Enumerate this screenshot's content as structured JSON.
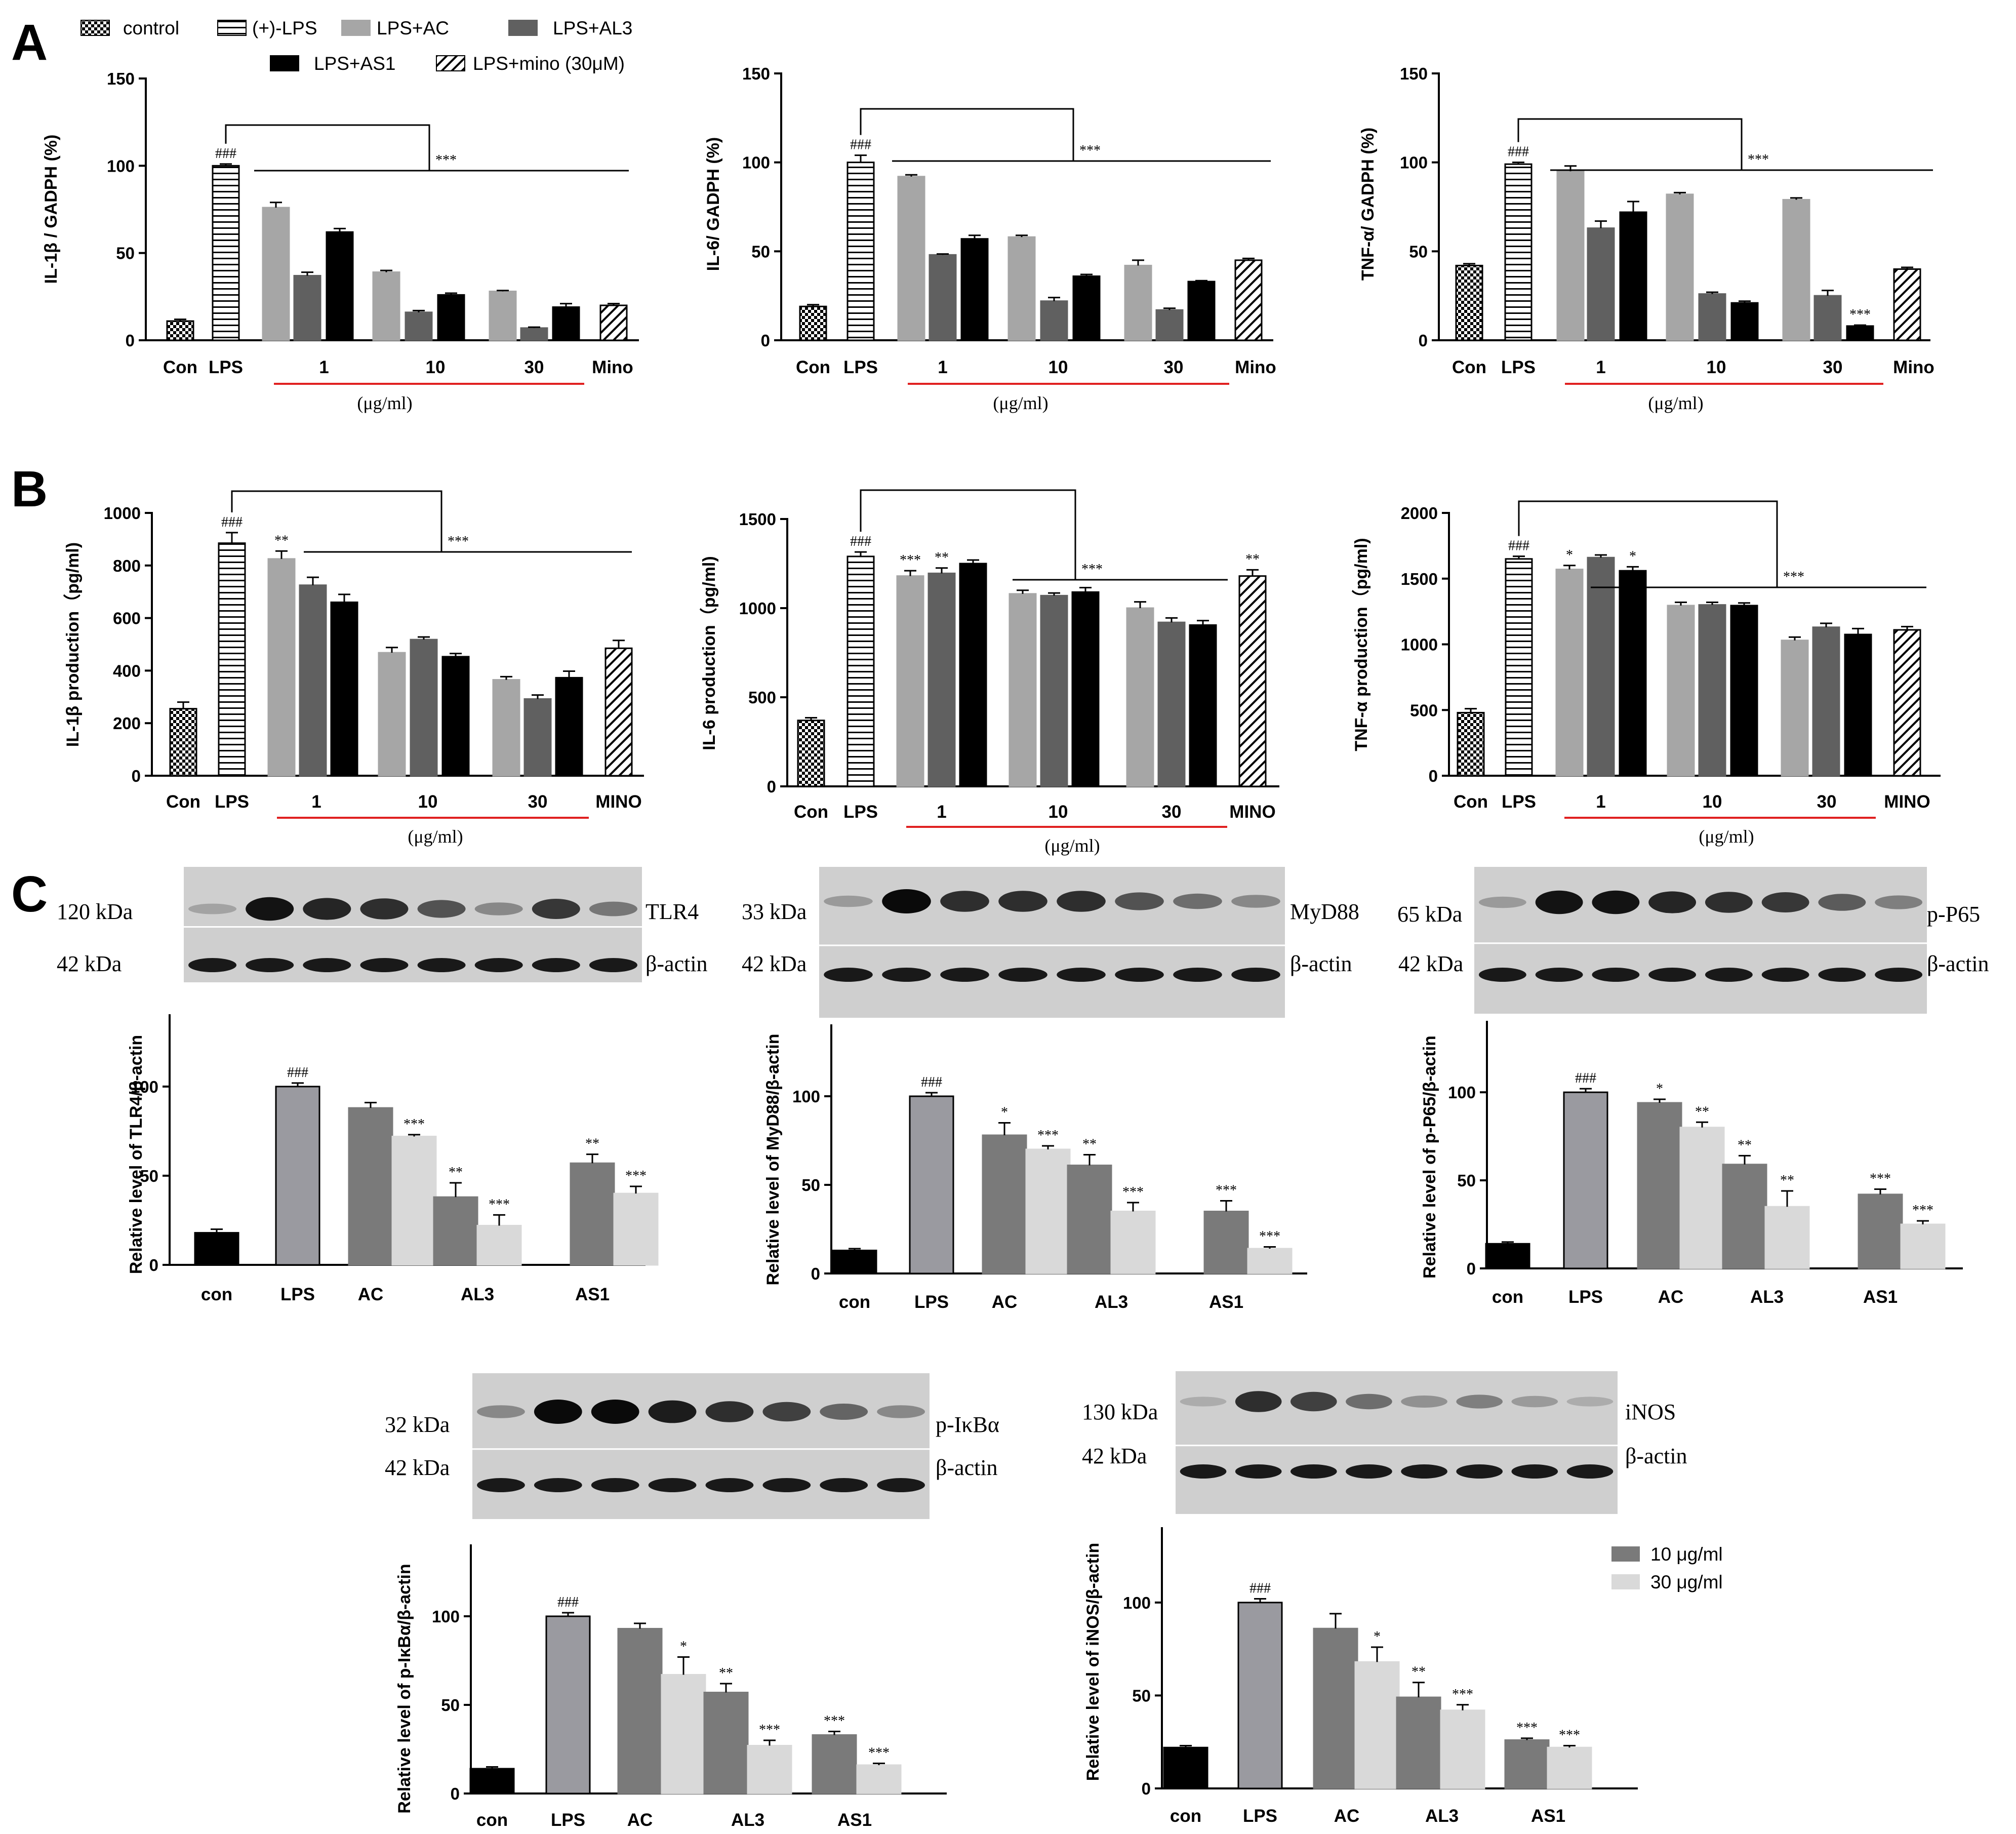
{
  "panels": {
    "a": "A",
    "b": "B",
    "c": "C"
  },
  "legend_a": {
    "items": [
      {
        "label": "control",
        "fill": "check"
      },
      {
        "label": "(+)-LPS",
        "fill": "hstripe"
      },
      {
        "label": "LPS+AC",
        "fill": "#a6a6a6"
      },
      {
        "label": "LPS+AL3",
        "fill": "#606060"
      },
      {
        "label": "LPS+AS1",
        "fill": "#000000"
      },
      {
        "label": "LPS+mino (30μM)",
        "fill": "diag"
      }
    ]
  },
  "legend_c": {
    "items": [
      {
        "label": "10 μg/ml",
        "fill": "#7a7a7a"
      },
      {
        "label": "30 μg/ml",
        "fill": "#d9d9d9"
      }
    ]
  },
  "blots": [
    {
      "kda_top": "120 kDa",
      "protein": "TLR4",
      "kda_bottom": "42 kDa",
      "control": "β-actin",
      "top_intensity": [
        0.15,
        0.95,
        0.85,
        0.8,
        0.6,
        0.3,
        0.75,
        0.4
      ]
    },
    {
      "kda_top": "33 kDa",
      "protein": "MyD88",
      "kda_bottom": "42 kDa",
      "control": "β-actin",
      "top_intensity": [
        0.2,
        1.0,
        0.8,
        0.8,
        0.8,
        0.6,
        0.45,
        0.3
      ]
    },
    {
      "kda_top": "65 kDa",
      "protein": "p-P65",
      "kda_bottom": "42 kDa",
      "control": "β-actin",
      "top_intensity": [
        0.2,
        0.95,
        0.95,
        0.85,
        0.8,
        0.75,
        0.55,
        0.35
      ]
    },
    {
      "kda_top": "32 kDa",
      "protein": "p-IκBα",
      "kda_bottom": "42 kDa",
      "control": "β-actin",
      "top_intensity": [
        0.3,
        1.0,
        1.0,
        0.9,
        0.8,
        0.7,
        0.5,
        0.3
      ]
    },
    {
      "kda_top": "130 kDa",
      "protein": "iNOS",
      "kda_bottom": "42 kDa",
      "control": "β-actin",
      "top_intensity": [
        0.1,
        0.8,
        0.7,
        0.45,
        0.25,
        0.35,
        0.2,
        0.1
      ]
    }
  ],
  "chart_data": [
    {
      "id": "A1",
      "type": "bar",
      "panel": "A",
      "ylabel": "IL-1β / GADPH (%)",
      "ylim": [
        0,
        150
      ],
      "yticks": [
        0,
        50,
        100,
        150
      ],
      "categories": [
        "Con",
        "LPS",
        "1",
        "10",
        "30",
        "Mino"
      ],
      "xunit": "(μg/ml)",
      "bars": [
        {
          "fill": "check",
          "value": 11,
          "err": 1
        },
        {
          "fill": "hstripe",
          "value": 100,
          "err": 1,
          "label": "###"
        },
        {
          "fill": "#a6a6a6",
          "value": 76,
          "err": 3
        },
        {
          "fill": "#606060",
          "value": 37,
          "err": 2
        },
        {
          "fill": "#000000",
          "value": 62,
          "err": 2
        },
        {
          "fill": "#a6a6a6",
          "value": 39,
          "err": 1
        },
        {
          "fill": "#606060",
          "value": 16,
          "err": 1
        },
        {
          "fill": "#000000",
          "value": 26,
          "err": 1
        },
        {
          "fill": "#a6a6a6",
          "value": 28,
          "err": 0.5
        },
        {
          "fill": "#606060",
          "value": 7,
          "err": 0.5
        },
        {
          "fill": "#000000",
          "value": 19,
          "err": 2
        },
        {
          "fill": "diag",
          "value": 20,
          "err": 1
        }
      ],
      "bracket_label": "***"
    },
    {
      "id": "A2",
      "type": "bar",
      "panel": "A",
      "ylabel": "IL-6/ GADPH (%)",
      "ylim": [
        0,
        150
      ],
      "yticks": [
        0,
        50,
        100,
        150
      ],
      "categories": [
        "Con",
        "LPS",
        "1",
        "10",
        "30",
        "Mino"
      ],
      "xunit": "(μg/ml)",
      "bars": [
        {
          "fill": "check",
          "value": 19,
          "err": 1
        },
        {
          "fill": "hstripe",
          "value": 100,
          "err": 4,
          "label": "###"
        },
        {
          "fill": "#a6a6a6",
          "value": 92,
          "err": 1
        },
        {
          "fill": "#606060",
          "value": 48,
          "err": 0.5
        },
        {
          "fill": "#000000",
          "value": 57,
          "err": 2
        },
        {
          "fill": "#a6a6a6",
          "value": 58,
          "err": 1
        },
        {
          "fill": "#606060",
          "value": 22,
          "err": 2
        },
        {
          "fill": "#000000",
          "value": 36,
          "err": 1
        },
        {
          "fill": "#a6a6a6",
          "value": 42,
          "err": 3
        },
        {
          "fill": "#606060",
          "value": 17,
          "err": 1
        },
        {
          "fill": "#000000",
          "value": 33,
          "err": 0.5
        },
        {
          "fill": "diag",
          "value": 45,
          "err": 1
        }
      ],
      "bracket_label": "***"
    },
    {
      "id": "A3",
      "type": "bar",
      "panel": "A",
      "ylabel": "TNF-α/ GADPH (%)",
      "ylim": [
        0,
        150
      ],
      "yticks": [
        0,
        50,
        100,
        150
      ],
      "categories": [
        "Con",
        "LPS",
        "1",
        "10",
        "30",
        "Mino"
      ],
      "xunit": "(μg/ml)",
      "bars": [
        {
          "fill": "check",
          "value": 42,
          "err": 1
        },
        {
          "fill": "hstripe",
          "value": 99,
          "err": 1,
          "label": "###"
        },
        {
          "fill": "#a6a6a6",
          "value": 95,
          "err": 3
        },
        {
          "fill": "#606060",
          "value": 63,
          "err": 4
        },
        {
          "fill": "#000000",
          "value": 72,
          "err": 6
        },
        {
          "fill": "#a6a6a6",
          "value": 82,
          "err": 1
        },
        {
          "fill": "#606060",
          "value": 26,
          "err": 1
        },
        {
          "fill": "#000000",
          "value": 21,
          "err": 1
        },
        {
          "fill": "#a6a6a6",
          "value": 79,
          "err": 1
        },
        {
          "fill": "#606060",
          "value": 25,
          "err": 3
        },
        {
          "fill": "#000000",
          "value": 8,
          "err": 0.5,
          "label": "***"
        },
        {
          "fill": "diag",
          "value": 40,
          "err": 1
        }
      ],
      "bracket_label": "***"
    },
    {
      "id": "B1",
      "type": "bar",
      "panel": "B",
      "ylabel": "IL-1β production（pg/ml)",
      "ylim": [
        0,
        1000
      ],
      "yticks": [
        0,
        200,
        400,
        600,
        800,
        1000
      ],
      "categories": [
        "Con",
        "LPS",
        "1",
        "10",
        "30",
        "MINO"
      ],
      "xunit": "(μg/ml)",
      "bars": [
        {
          "fill": "check",
          "value": 255,
          "err": 25
        },
        {
          "fill": "hstripe",
          "value": 885,
          "err": 40,
          "label": "###"
        },
        {
          "fill": "#a6a6a6",
          "value": 825,
          "err": 30,
          "label": "**"
        },
        {
          "fill": "#606060",
          "value": 725,
          "err": 30
        },
        {
          "fill": "#000000",
          "value": 660,
          "err": 30
        },
        {
          "fill": "#a6a6a6",
          "value": 468,
          "err": 20
        },
        {
          "fill": "#606060",
          "value": 518,
          "err": 10
        },
        {
          "fill": "#000000",
          "value": 453,
          "err": 12
        },
        {
          "fill": "#a6a6a6",
          "value": 365,
          "err": 12
        },
        {
          "fill": "#606060",
          "value": 292,
          "err": 15
        },
        {
          "fill": "#000000",
          "value": 373,
          "err": 25
        },
        {
          "fill": "diag",
          "value": 485,
          "err": 30
        }
      ],
      "bracket_label": "***"
    },
    {
      "id": "B2",
      "type": "bar",
      "panel": "B",
      "ylabel": "IL-6 production（pg/ml)",
      "ylim": [
        0,
        1500
      ],
      "yticks": [
        0,
        500,
        1000,
        1500
      ],
      "categories": [
        "Con",
        "LPS",
        "1",
        "10",
        "30",
        "MINO"
      ],
      "xunit": "(μg/ml)",
      "bars": [
        {
          "fill": "check",
          "value": 370,
          "err": 15
        },
        {
          "fill": "hstripe",
          "value": 1290,
          "err": 25,
          "label": "###"
        },
        {
          "fill": "#a6a6a6",
          "value": 1180,
          "err": 30,
          "label": "***"
        },
        {
          "fill": "#606060",
          "value": 1195,
          "err": 30,
          "label": "**"
        },
        {
          "fill": "#000000",
          "value": 1250,
          "err": 20
        },
        {
          "fill": "#a6a6a6",
          "value": 1080,
          "err": 20
        },
        {
          "fill": "#606060",
          "value": 1070,
          "err": 15
        },
        {
          "fill": "#000000",
          "value": 1090,
          "err": 25
        },
        {
          "fill": "#a6a6a6",
          "value": 1000,
          "err": 35
        },
        {
          "fill": "#606060",
          "value": 920,
          "err": 25
        },
        {
          "fill": "#000000",
          "value": 905,
          "err": 25
        },
        {
          "fill": "diag",
          "value": 1180,
          "err": 35,
          "label": "**"
        }
      ],
      "bracket_label": "***"
    },
    {
      "id": "B3",
      "type": "bar",
      "panel": "B",
      "ylabel": "TNF-α production（pg/ml)",
      "ylim": [
        0,
        2000
      ],
      "yticks": [
        0,
        500,
        1000,
        1500,
        2000
      ],
      "categories": [
        "Con",
        "LPS",
        "1",
        "10",
        "30",
        "MINO"
      ],
      "xunit": "(μg/ml)",
      "bars": [
        {
          "fill": "check",
          "value": 480,
          "err": 30
        },
        {
          "fill": "hstripe",
          "value": 1650,
          "err": 20,
          "label": "###"
        },
        {
          "fill": "#a6a6a6",
          "value": 1570,
          "err": 30,
          "label": "*"
        },
        {
          "fill": "#606060",
          "value": 1660,
          "err": 20
        },
        {
          "fill": "#000000",
          "value": 1560,
          "err": 30,
          "label": "*"
        },
        {
          "fill": "#a6a6a6",
          "value": 1295,
          "err": 25
        },
        {
          "fill": "#606060",
          "value": 1300,
          "err": 20
        },
        {
          "fill": "#000000",
          "value": 1295,
          "err": 20
        },
        {
          "fill": "#a6a6a6",
          "value": 1030,
          "err": 25
        },
        {
          "fill": "#606060",
          "value": 1130,
          "err": 30
        },
        {
          "fill": "#000000",
          "value": 1075,
          "err": 45
        },
        {
          "fill": "diag",
          "value": 1110,
          "err": 25
        }
      ],
      "bracket_label": "***"
    },
    {
      "id": "C1",
      "type": "bar",
      "panel": "C",
      "ylabel": "Relative level of TLR4/β-actin",
      "ylim": [
        0,
        140
      ],
      "yticks": [
        0,
        50,
        100
      ],
      "categories": [
        "con",
        "LPS",
        "AC",
        "AL3",
        "AS1"
      ],
      "bars": [
        {
          "fill": "#000000",
          "value": 18,
          "err": 2
        },
        {
          "fill": "#9a9aa0",
          "value": 100,
          "err": 2,
          "label": "###"
        },
        {
          "fill": "#7a7a7a",
          "value": 88,
          "err": 3
        },
        {
          "fill": "#d9d9d9",
          "value": 72,
          "err": 1,
          "label": "***"
        },
        {
          "fill": "#7a7a7a",
          "value": 38,
          "err": 8,
          "label": "**"
        },
        {
          "fill": "#d9d9d9",
          "value": 22,
          "err": 6,
          "label": "***"
        },
        {
          "fill": "#7a7a7a",
          "value": 57,
          "err": 5,
          "label": "**"
        },
        {
          "fill": "#d9d9d9",
          "value": 40,
          "err": 4,
          "label": "***"
        }
      ]
    },
    {
      "id": "C2",
      "type": "bar",
      "panel": "C",
      "ylabel": "Relative level of MyD88/β-actin",
      "ylim": [
        0,
        140
      ],
      "yticks": [
        0,
        50,
        100
      ],
      "categories": [
        "con",
        "LPS",
        "AC",
        "AL3",
        "AS1"
      ],
      "bars": [
        {
          "fill": "#000000",
          "value": 13,
          "err": 1
        },
        {
          "fill": "#9a9aa0",
          "value": 100,
          "err": 2,
          "label": "###"
        },
        {
          "fill": "#7a7a7a",
          "value": 78,
          "err": 7,
          "label": "*"
        },
        {
          "fill": "#d9d9d9",
          "value": 70,
          "err": 2,
          "label": "***"
        },
        {
          "fill": "#7a7a7a",
          "value": 61,
          "err": 6,
          "label": "**"
        },
        {
          "fill": "#d9d9d9",
          "value": 35,
          "err": 5,
          "label": "***"
        },
        {
          "fill": "#7a7a7a",
          "value": 35,
          "err": 6,
          "label": "***"
        },
        {
          "fill": "#d9d9d9",
          "value": 14,
          "err": 1,
          "label": "***"
        }
      ]
    },
    {
      "id": "C3",
      "type": "bar",
      "panel": "C",
      "ylabel": "Relative level of p-P65/β-actin",
      "ylim": [
        0,
        140
      ],
      "yticks": [
        0,
        50,
        100
      ],
      "categories": [
        "con",
        "LPS",
        "AC",
        "AL3",
        "AS1"
      ],
      "bars": [
        {
          "fill": "#000000",
          "value": 14,
          "err": 1
        },
        {
          "fill": "#9a9aa0",
          "value": 100,
          "err": 2,
          "label": "###"
        },
        {
          "fill": "#7a7a7a",
          "value": 94,
          "err": 2,
          "label": "*"
        },
        {
          "fill": "#d9d9d9",
          "value": 80,
          "err": 3,
          "label": "**"
        },
        {
          "fill": "#7a7a7a",
          "value": 59,
          "err": 5,
          "label": "**"
        },
        {
          "fill": "#d9d9d9",
          "value": 35,
          "err": 9,
          "label": "**"
        },
        {
          "fill": "#7a7a7a",
          "value": 42,
          "err": 3,
          "label": "***"
        },
        {
          "fill": "#d9d9d9",
          "value": 25,
          "err": 2,
          "label": "***"
        }
      ]
    },
    {
      "id": "C4",
      "type": "bar",
      "panel": "C",
      "ylabel": "Relative level of p-IκBα/β-actin",
      "ylim": [
        0,
        140
      ],
      "yticks": [
        0,
        50,
        100
      ],
      "categories": [
        "con",
        "LPS",
        "AC",
        "AL3",
        "AS1"
      ],
      "bars": [
        {
          "fill": "#000000",
          "value": 14,
          "err": 1
        },
        {
          "fill": "#9a9aa0",
          "value": 100,
          "err": 2,
          "label": "###"
        },
        {
          "fill": "#7a7a7a",
          "value": 93,
          "err": 3
        },
        {
          "fill": "#d9d9d9",
          "value": 67,
          "err": 10,
          "label": "*"
        },
        {
          "fill": "#7a7a7a",
          "value": 57,
          "err": 5,
          "label": "**"
        },
        {
          "fill": "#d9d9d9",
          "value": 27,
          "err": 3,
          "label": "***"
        },
        {
          "fill": "#7a7a7a",
          "value": 33,
          "err": 2,
          "label": "***"
        },
        {
          "fill": "#d9d9d9",
          "value": 16,
          "err": 1,
          "label": "***"
        }
      ]
    },
    {
      "id": "C5",
      "type": "bar",
      "panel": "C",
      "ylabel": "Relative level of iNOS/β-actin",
      "ylim": [
        0,
        140
      ],
      "yticks": [
        0,
        50,
        100
      ],
      "categories": [
        "con",
        "LPS",
        "AC",
        "AL3",
        "AS1"
      ],
      "bars": [
        {
          "fill": "#000000",
          "value": 22,
          "err": 1
        },
        {
          "fill": "#9a9aa0",
          "value": 100,
          "err": 2,
          "label": "###"
        },
        {
          "fill": "#7a7a7a",
          "value": 86,
          "err": 8
        },
        {
          "fill": "#d9d9d9",
          "value": 68,
          "err": 8,
          "label": "*"
        },
        {
          "fill": "#7a7a7a",
          "value": 49,
          "err": 8,
          "label": "**"
        },
        {
          "fill": "#d9d9d9",
          "value": 42,
          "err": 3,
          "label": "***"
        },
        {
          "fill": "#7a7a7a",
          "value": 26,
          "err": 1,
          "label": "***"
        },
        {
          "fill": "#d9d9d9",
          "value": 22,
          "err": 1,
          "label": "***"
        }
      ]
    }
  ]
}
